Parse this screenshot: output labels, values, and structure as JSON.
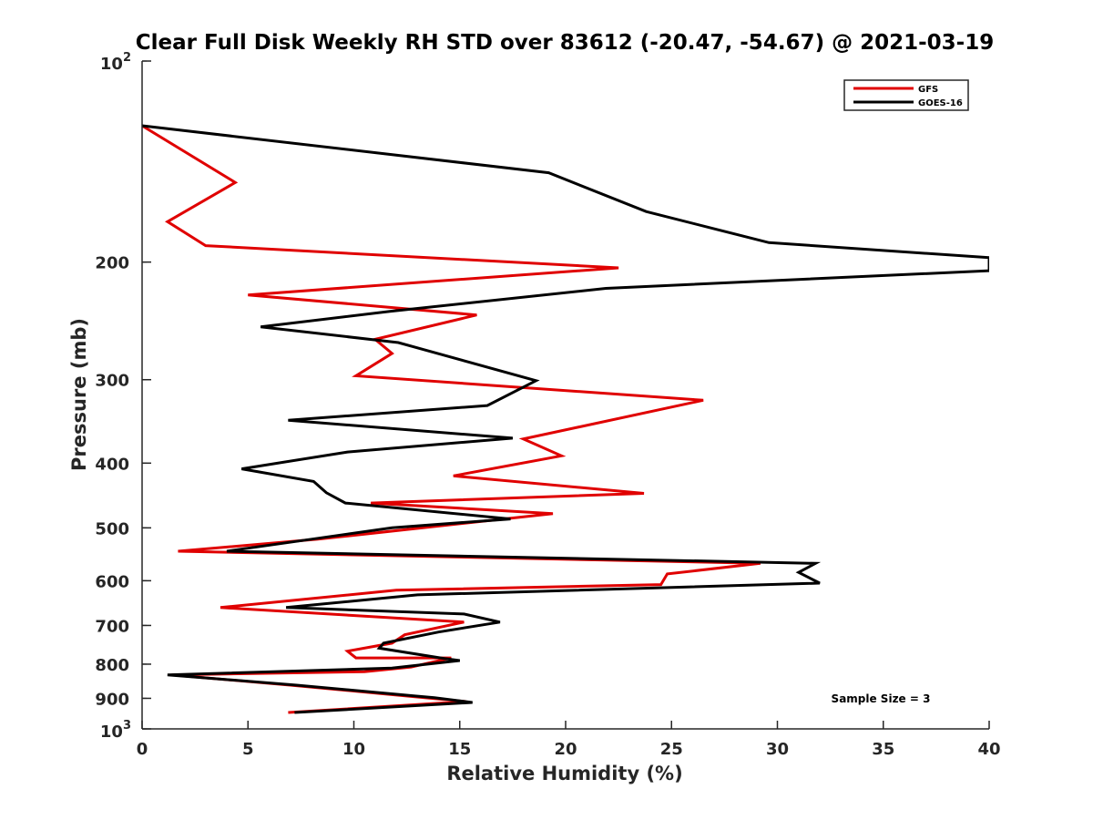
{
  "chart_data": {
    "type": "line",
    "title": "Clear Full Disk Weekly RH STD over 83612 (-20.47, -54.67) @ 2021-03-19",
    "xlabel": "Relative Humidity (%)",
    "ylabel": "Pressure (mb)",
    "xlim": [
      0,
      40
    ],
    "ylim": [
      100,
      1000
    ],
    "y_scale": "log",
    "y_reversed": true,
    "x_ticks": [
      "0",
      "5",
      "10",
      "15",
      "20",
      "25",
      "30",
      "35",
      "40"
    ],
    "y_ticks": [
      {
        "value": 100,
        "base": "10",
        "exp": "2"
      },
      {
        "value": 200,
        "label": "200"
      },
      {
        "value": 300,
        "label": "300"
      },
      {
        "value": 400,
        "label": "400"
      },
      {
        "value": 500,
        "label": "500"
      },
      {
        "value": 600,
        "label": "600"
      },
      {
        "value": 700,
        "label": "700"
      },
      {
        "value": 800,
        "label": "800"
      },
      {
        "value": 900,
        "label": "900"
      },
      {
        "value": 1000,
        "base": "10",
        "exp": "3"
      }
    ],
    "legend_position": "top-right",
    "annotation": "Sample Size = 3",
    "series": [
      {
        "name": "GFS",
        "color": "#e00000",
        "points": [
          [
            0.0,
            125
          ],
          [
            4.4,
            152
          ],
          [
            1.2,
            174
          ],
          [
            3.0,
            189
          ],
          [
            22.5,
            204
          ],
          [
            5.0,
            224
          ],
          [
            15.8,
            240
          ],
          [
            11.0,
            261
          ],
          [
            11.8,
            274
          ],
          [
            10.1,
            296
          ],
          [
            26.5,
            322
          ],
          [
            18.0,
            368
          ],
          [
            19.8,
            390
          ],
          [
            14.7,
            418
          ],
          [
            23.7,
            444
          ],
          [
            10.8,
            459
          ],
          [
            19.4,
            476
          ],
          [
            8.3,
            520
          ],
          [
            1.7,
            542
          ],
          [
            29.2,
            565
          ],
          [
            24.8,
            586
          ],
          [
            24.5,
            608
          ],
          [
            12.0,
            620
          ],
          [
            3.7,
            658
          ],
          [
            15.2,
            692
          ],
          [
            12.4,
            723
          ],
          [
            11.8,
            744
          ],
          [
            9.7,
            765
          ],
          [
            10.1,
            783
          ],
          [
            14.6,
            783
          ],
          [
            12.7,
            808
          ],
          [
            10.5,
            821
          ],
          [
            1.4,
            830
          ],
          [
            7.0,
            860
          ],
          [
            15.3,
            910
          ],
          [
            6.9,
            945
          ]
        ]
      },
      {
        "name": "GOES-16",
        "color": "#000000",
        "points": [
          [
            0.0,
            125
          ],
          [
            19.2,
            147
          ],
          [
            23.8,
            168
          ],
          [
            29.6,
            187
          ],
          [
            40.0,
            197
          ],
          [
            40.0,
            206
          ],
          [
            21.9,
            219
          ],
          [
            11.7,
            237
          ],
          [
            5.6,
            250
          ],
          [
            12.1,
            264
          ],
          [
            18.6,
            301
          ],
          [
            16.3,
            328
          ],
          [
            6.9,
            345
          ],
          [
            17.5,
            367
          ],
          [
            9.7,
            385
          ],
          [
            4.7,
            408
          ],
          [
            8.1,
            426
          ],
          [
            8.7,
            443
          ],
          [
            9.6,
            459
          ],
          [
            17.4,
            485
          ],
          [
            11.8,
            500
          ],
          [
            8.0,
            520
          ],
          [
            4.0,
            542
          ],
          [
            31.8,
            565
          ],
          [
            31.0,
            583
          ],
          [
            32.0,
            605
          ],
          [
            13.0,
            630
          ],
          [
            6.8,
            658
          ],
          [
            15.2,
            673
          ],
          [
            16.9,
            692
          ],
          [
            14.0,
            716
          ],
          [
            11.4,
            744
          ],
          [
            11.2,
            757
          ],
          [
            14.3,
            785
          ],
          [
            15.0,
            790
          ],
          [
            11.8,
            811
          ],
          [
            1.2,
            830
          ],
          [
            7.3,
            860
          ],
          [
            13.8,
            898
          ],
          [
            15.6,
            913
          ],
          [
            7.2,
            945
          ]
        ]
      }
    ]
  }
}
